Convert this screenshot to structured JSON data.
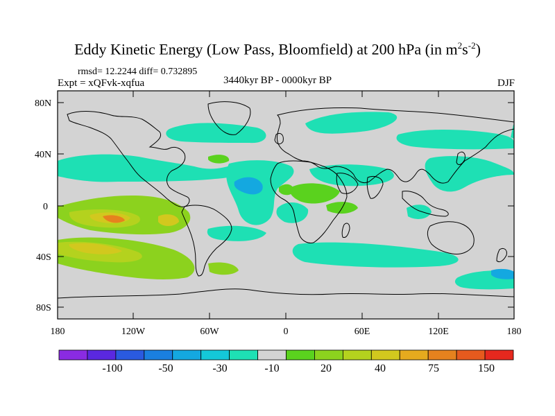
{
  "title": {
    "main": "Eddy Kinetic Energy (Low Pass, Bloomfield) at 200 hPa (in m",
    "sup1": "2",
    "mid": "s",
    "sup2": "-2",
    "end": ")"
  },
  "stats": "rmsd= 12.2244  diff= 0.732895",
  "experiment": "Expt = xQFvk-xqfua",
  "period": "3440kyr BP - 0000kyr BP",
  "season": "DJF",
  "map": {
    "lat_labels": [
      "80N",
      "40N",
      "0",
      "40S",
      "80S"
    ],
    "lon_labels": [
      "180",
      "120W",
      "60W",
      "0",
      "60E",
      "120E",
      "180"
    ],
    "background_color": "#d3d3d3"
  },
  "colorbar": {
    "colors": [
      "#8a2be2",
      "#5a28e0",
      "#2a5ae0",
      "#1a7fe0",
      "#14a8e0",
      "#14c8d8",
      "#1ee0b4",
      "#d3d3d3",
      "#5ad21e",
      "#8cd21e",
      "#b4d21e",
      "#d2c81e",
      "#e6aa1e",
      "#e6821e",
      "#e65a1e",
      "#e6281e"
    ],
    "labels": [
      "-100",
      "-50",
      "-30",
      "-10",
      "20",
      "40",
      "75",
      "150"
    ]
  }
}
